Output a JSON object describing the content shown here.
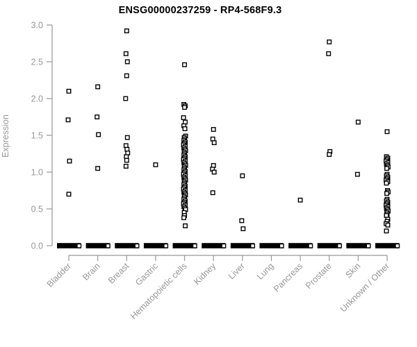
{
  "chart_data": {
    "type": "scatter",
    "title": "ENSG00000237259 - RP4-568F9.3",
    "xlabel": "",
    "ylabel": "Expression",
    "ylim": [
      0.0,
      3.0
    ],
    "yticks": [
      "0.0",
      "0.5",
      "1.0",
      "1.5",
      "2.0",
      "2.5",
      "3.0"
    ],
    "grid": false,
    "legend": "none",
    "marker": "open-square",
    "colors": {
      "axis": "#979797",
      "tick_label": "#979797",
      "title": "#000000",
      "marker_stroke": "#000000",
      "marker_fill": "#ffffff",
      "background": "#ffffff"
    },
    "categories": [
      "Bladder",
      "Brain",
      "Breast",
      "Gastric",
      "Hematopoietic cells",
      "Kidney",
      "Liver",
      "Lung",
      "Pancreas",
      "Prostate",
      "Skin",
      "Unknown / Other"
    ],
    "series": [
      {
        "category": "Bladder",
        "zero_cluster": true,
        "values": [
          2.1,
          1.71,
          1.15,
          0.7
        ]
      },
      {
        "category": "Brain",
        "zero_cluster": true,
        "values": [
          2.16,
          1.75,
          1.51,
          1.05
        ]
      },
      {
        "category": "Breast",
        "zero_cluster": true,
        "values": [
          2.92,
          2.61,
          2.5,
          2.31,
          2.0,
          1.47,
          1.36,
          1.31,
          1.26,
          1.21,
          1.16,
          1.08
        ]
      },
      {
        "category": "Gastric",
        "zero_cluster": true,
        "values": [
          1.1
        ]
      },
      {
        "category": "Hematopoietic cells",
        "zero_cluster": true,
        "values": [
          2.46,
          1.92,
          1.9,
          1.88,
          1.74,
          1.68,
          1.63,
          1.59,
          1.49,
          1.47,
          1.45,
          1.43,
          1.41,
          1.39,
          1.37,
          1.35,
          1.33,
          1.31,
          1.29,
          1.27,
          1.25,
          1.23,
          1.21,
          1.19,
          1.17,
          1.15,
          1.13,
          1.11,
          1.09,
          1.07,
          1.05,
          1.03,
          1.01,
          0.99,
          0.97,
          0.95,
          0.93,
          0.91,
          0.89,
          0.87,
          0.85,
          0.83,
          0.81,
          0.79,
          0.77,
          0.75,
          0.73,
          0.71,
          0.69,
          0.67,
          0.65,
          0.63,
          0.61,
          0.59,
          0.57,
          0.55,
          0.53,
          0.51,
          0.49,
          0.45,
          0.41,
          0.38,
          0.27
        ]
      },
      {
        "category": "Kidney",
        "zero_cluster": true,
        "values": [
          1.58,
          1.45,
          1.4,
          1.09,
          1.04,
          1.0,
          0.72
        ]
      },
      {
        "category": "Liver",
        "zero_cluster": true,
        "values": [
          0.95,
          0.34,
          0.23
        ]
      },
      {
        "category": "Lung",
        "zero_cluster": true,
        "values": []
      },
      {
        "category": "Pancreas",
        "zero_cluster": true,
        "values": [
          0.62
        ]
      },
      {
        "category": "Prostate",
        "zero_cluster": true,
        "values": [
          2.77,
          2.61,
          1.28,
          1.24
        ]
      },
      {
        "category": "Skin",
        "zero_cluster": true,
        "values": [
          1.68,
          0.97
        ]
      },
      {
        "category": "Unknown / Other",
        "zero_cluster": true,
        "values": [
          1.55,
          1.21,
          1.19,
          1.17,
          1.15,
          1.13,
          1.11,
          1.09,
          1.07,
          1.05,
          0.97,
          0.95,
          0.93,
          0.91,
          0.89,
          0.87,
          0.85,
          0.75,
          0.73,
          0.71,
          0.63,
          0.61,
          0.59,
          0.57,
          0.55,
          0.53,
          0.51,
          0.49,
          0.47,
          0.45,
          0.43,
          0.41,
          0.36,
          0.33,
          0.3,
          0.28,
          0.2
        ]
      }
    ]
  }
}
